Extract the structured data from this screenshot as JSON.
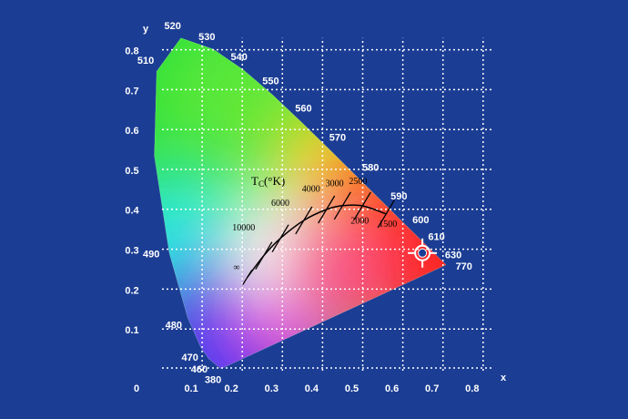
{
  "chart_data": {
    "type": "chromaticity",
    "x_label": "x",
    "y_label": "y",
    "xlim": [
      0,
      0.8
    ],
    "ylim": [
      0,
      0.8
    ],
    "xticks": [
      0,
      0.1,
      0.2,
      0.3,
      0.4,
      0.5,
      0.6,
      0.7,
      0.8
    ],
    "yticks": [
      0.1,
      0.2,
      0.3,
      0.4,
      0.5,
      0.6,
      0.7,
      0.8
    ],
    "grid": true,
    "locus": {
      "labels": [
        "380",
        "460",
        "470",
        "480",
        "490",
        null,
        "510",
        "520",
        "530",
        "540",
        "550",
        "560",
        "570",
        "580",
        "590",
        "600",
        "610",
        null,
        "630",
        "770"
      ],
      "x": [
        0.1741,
        0.144,
        0.1241,
        0.0913,
        0.0454,
        0.0082,
        0.0139,
        0.0743,
        0.1547,
        0.2296,
        0.3016,
        0.3731,
        0.4441,
        0.5125,
        0.5752,
        0.627,
        0.6658,
        0.6915,
        0.7079,
        0.7347
      ],
      "y": [
        0.005,
        0.0297,
        0.0578,
        0.1327,
        0.295,
        0.5384,
        0.7502,
        0.8338,
        0.8059,
        0.7543,
        0.6923,
        0.6245,
        0.5547,
        0.4866,
        0.4242,
        0.3725,
        0.334,
        0.3083,
        0.292,
        0.2653
      ]
    },
    "planckian": {
      "title": "T",
      "title_sub": "C",
      "title_unit": "(°K)",
      "labels": [
        "∞",
        "10000",
        "6000",
        "4000",
        "3000",
        "2500",
        "2000",
        "1500"
      ],
      "x": [
        0.2399,
        0.2807,
        0.3221,
        0.3805,
        0.4369,
        0.477,
        0.5267,
        0.5857
      ],
      "y": [
        0.2342,
        0.2884,
        0.3318,
        0.3768,
        0.4041,
        0.4137,
        0.4133,
        0.3931
      ]
    },
    "target": {
      "x": 0.676,
      "y": 0.295
    }
  }
}
